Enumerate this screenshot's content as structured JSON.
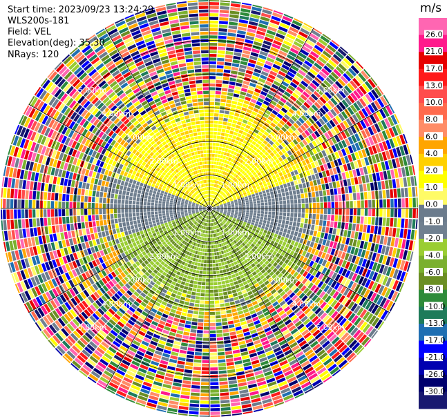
{
  "header": {
    "start_time": "Start time: 2023/09/23 13:24:29",
    "instrument": "WLS200s-181",
    "field": "Field: VEL",
    "elevation": "Elevation(deg): 35.30",
    "nrays": "NRays: 120"
  },
  "chart_data": {
    "type": "heatmap",
    "projection": "polar-ppi",
    "field": "VEL",
    "unit": "m/s",
    "nrays": 120,
    "elevation_deg": 35.3,
    "range_rings_km": [
      1.0,
      2.0,
      3.0,
      4.0,
      5.0
    ],
    "range_label_text": [
      "1.00km",
      "2.00km",
      "3.00km",
      "4.00km",
      "5.00km"
    ],
    "max_range_km": 6.2,
    "spokes_deg": [
      0,
      30,
      60,
      90,
      120,
      150,
      180,
      210,
      240,
      270,
      300,
      330
    ],
    "colorbar": {
      "title": "m/s",
      "min": -30.0,
      "max": 30.0,
      "ticks": [
        "26.0",
        "21.0",
        "17.0",
        "13.0",
        "10.0",
        "8.0",
        "6.0",
        "4.0",
        "2.0",
        "1.0",
        "0.0",
        "-1.0",
        "-2.0",
        "-4.0",
        "-6.0",
        "-8.0",
        "-10.0",
        "-13.0",
        "-17.0",
        "-21.0",
        "-26.0",
        "-30.0"
      ],
      "colors": [
        "#ff66b2",
        "#ff1a8c",
        "#e60000",
        "#ff1a1a",
        "#ff4d4d",
        "#ff6a4d",
        "#ff8c66",
        "#ffa500",
        "#ffd000",
        "#ffff00",
        "#fffb66",
        "#6b7b8c",
        "#708090",
        "#9acd32",
        "#7ab02e",
        "#6b8e23",
        "#2e8b3a",
        "#1e7b5a",
        "#1f6fb2",
        "#0000ff",
        "#0000b0",
        "#00006e",
        "#191970"
      ]
    }
  }
}
